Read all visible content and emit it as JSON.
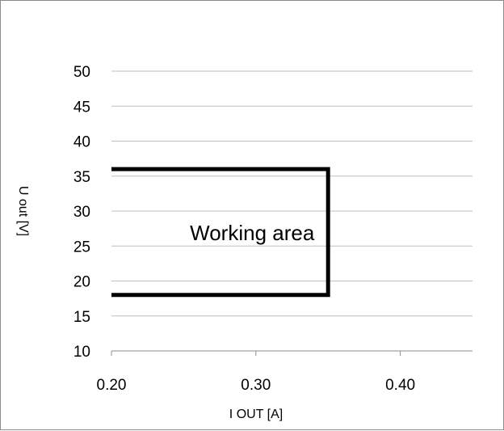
{
  "chart_data": {
    "type": "line",
    "title": "",
    "xlabel": "I OUT [A]",
    "ylabel": "U out [V]",
    "xlim": [
      0.2,
      0.45
    ],
    "ylim": [
      10,
      50
    ],
    "x_ticks": [
      "0.20",
      "0.30",
      "0.40"
    ],
    "y_ticks": [
      "10",
      "15",
      "20",
      "25",
      "30",
      "35",
      "40",
      "45",
      "50"
    ],
    "grid": "horizontal",
    "legend": "none",
    "series": [
      {
        "x": [
          0.2,
          0.35,
          0.35,
          0.2
        ],
        "y": [
          36,
          36,
          18,
          18
        ],
        "color": "#000000"
      }
    ],
    "annotations": [
      {
        "text": "Working area",
        "x": 0.27,
        "y": 27
      }
    ]
  }
}
